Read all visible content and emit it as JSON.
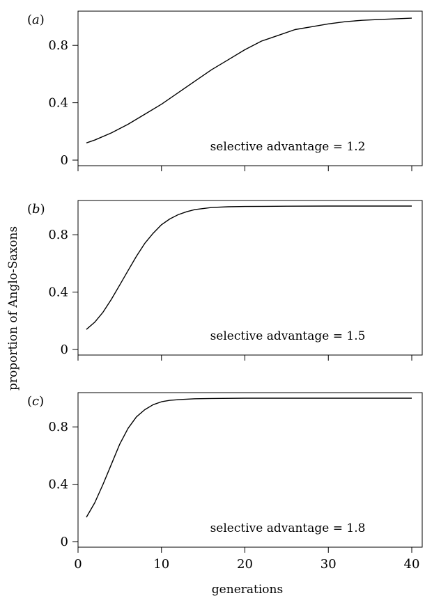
{
  "ylabel": "proportion of Anglo-Saxons",
  "xlabel": "generations",
  "colors": {
    "line": "#000000",
    "frame": "#000000",
    "background": "#ffffff"
  },
  "chart_data": [
    {
      "type": "line",
      "panel_label": "(a)",
      "annotation": "selective advantage = 1.2",
      "xlim": [
        1,
        40
      ],
      "ylim": [
        0,
        1
      ],
      "yticks": [
        0,
        0.4,
        0.8
      ],
      "ytick_labels": [
        "0",
        "0.4",
        "0.8"
      ],
      "xticks": [
        0,
        10,
        20,
        30,
        40
      ],
      "xtick_labels": [],
      "x": [
        1,
        2,
        4,
        6,
        8,
        10,
        12,
        14,
        16,
        18,
        20,
        22,
        24,
        26,
        28,
        30,
        32,
        34,
        36,
        38,
        40
      ],
      "y": [
        0.12,
        0.14,
        0.19,
        0.25,
        0.32,
        0.39,
        0.47,
        0.55,
        0.63,
        0.7,
        0.77,
        0.83,
        0.87,
        0.91,
        0.93,
        0.95,
        0.965,
        0.975,
        0.98,
        0.985,
        0.99
      ]
    },
    {
      "type": "line",
      "panel_label": "(b)",
      "annotation": "selective advantage = 1.5",
      "xlim": [
        1,
        40
      ],
      "ylim": [
        0,
        1
      ],
      "yticks": [
        0,
        0.4,
        0.8
      ],
      "ytick_labels": [
        "0",
        "0.4",
        "0.8"
      ],
      "xticks": [
        0,
        10,
        20,
        30,
        40
      ],
      "xtick_labels": [],
      "x": [
        1,
        2,
        3,
        4,
        5,
        6,
        7,
        8,
        9,
        10,
        11,
        12,
        13,
        14,
        16,
        18,
        20,
        25,
        30,
        35,
        40
      ],
      "y": [
        0.14,
        0.19,
        0.26,
        0.35,
        0.45,
        0.55,
        0.65,
        0.74,
        0.81,
        0.87,
        0.91,
        0.94,
        0.96,
        0.975,
        0.99,
        0.995,
        0.997,
        0.999,
        1.0,
        1.0,
        1.0
      ]
    },
    {
      "type": "line",
      "panel_label": "(c)",
      "annotation": "selective advantage = 1.8",
      "xlim": [
        1,
        40
      ],
      "ylim": [
        0,
        1
      ],
      "yticks": [
        0,
        0.4,
        0.8
      ],
      "ytick_labels": [
        "0",
        "0.4",
        "0.8"
      ],
      "xticks": [
        0,
        10,
        20,
        30,
        40
      ],
      "xtick_labels": [
        "0",
        "10",
        "20",
        "30",
        "40"
      ],
      "x": [
        1,
        2,
        3,
        4,
        5,
        6,
        7,
        8,
        9,
        10,
        11,
        12,
        14,
        16,
        20,
        25,
        30,
        35,
        40
      ],
      "y": [
        0.17,
        0.27,
        0.4,
        0.54,
        0.68,
        0.79,
        0.87,
        0.92,
        0.955,
        0.975,
        0.985,
        0.99,
        0.996,
        0.998,
        1.0,
        1.0,
        1.0,
        1.0,
        1.0
      ]
    }
  ]
}
